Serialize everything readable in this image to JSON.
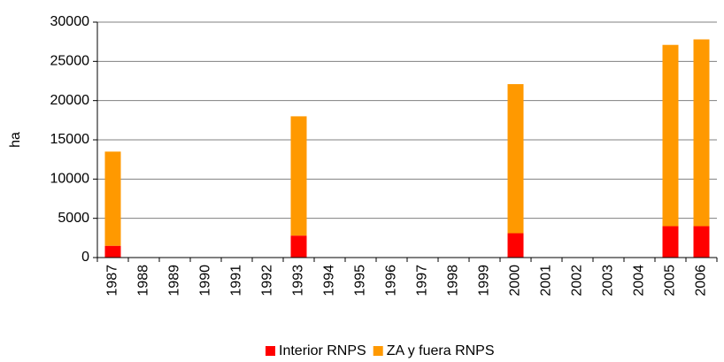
{
  "chart_data": {
    "type": "stacked_bar",
    "y_label": "ha",
    "categories": [
      "1987",
      "1988",
      "1989",
      "1990",
      "1991",
      "1992",
      "1993",
      "1994",
      "1995",
      "1996",
      "1997",
      "1998",
      "1999",
      "2000",
      "2001",
      "2002",
      "2003",
      "2004",
      "2005",
      "2006"
    ],
    "series": [
      {
        "name": "Interior RNPS",
        "color": "#ff0000",
        "values": [
          1500,
          null,
          null,
          null,
          null,
          null,
          2800,
          null,
          null,
          null,
          null,
          null,
          null,
          3100,
          null,
          null,
          null,
          null,
          4000,
          4000
        ]
      },
      {
        "name": "ZA y fuera RNPS",
        "color": "#ff9900",
        "values": [
          12000,
          null,
          null,
          null,
          null,
          null,
          15200,
          null,
          null,
          null,
          null,
          null,
          null,
          19000,
          null,
          null,
          null,
          null,
          23100,
          23800
        ]
      }
    ],
    "ylim": [
      0,
      30000
    ],
    "yticks": [
      0,
      5000,
      10000,
      15000,
      20000,
      25000,
      30000
    ],
    "grid": true,
    "legend": "bottom"
  }
}
